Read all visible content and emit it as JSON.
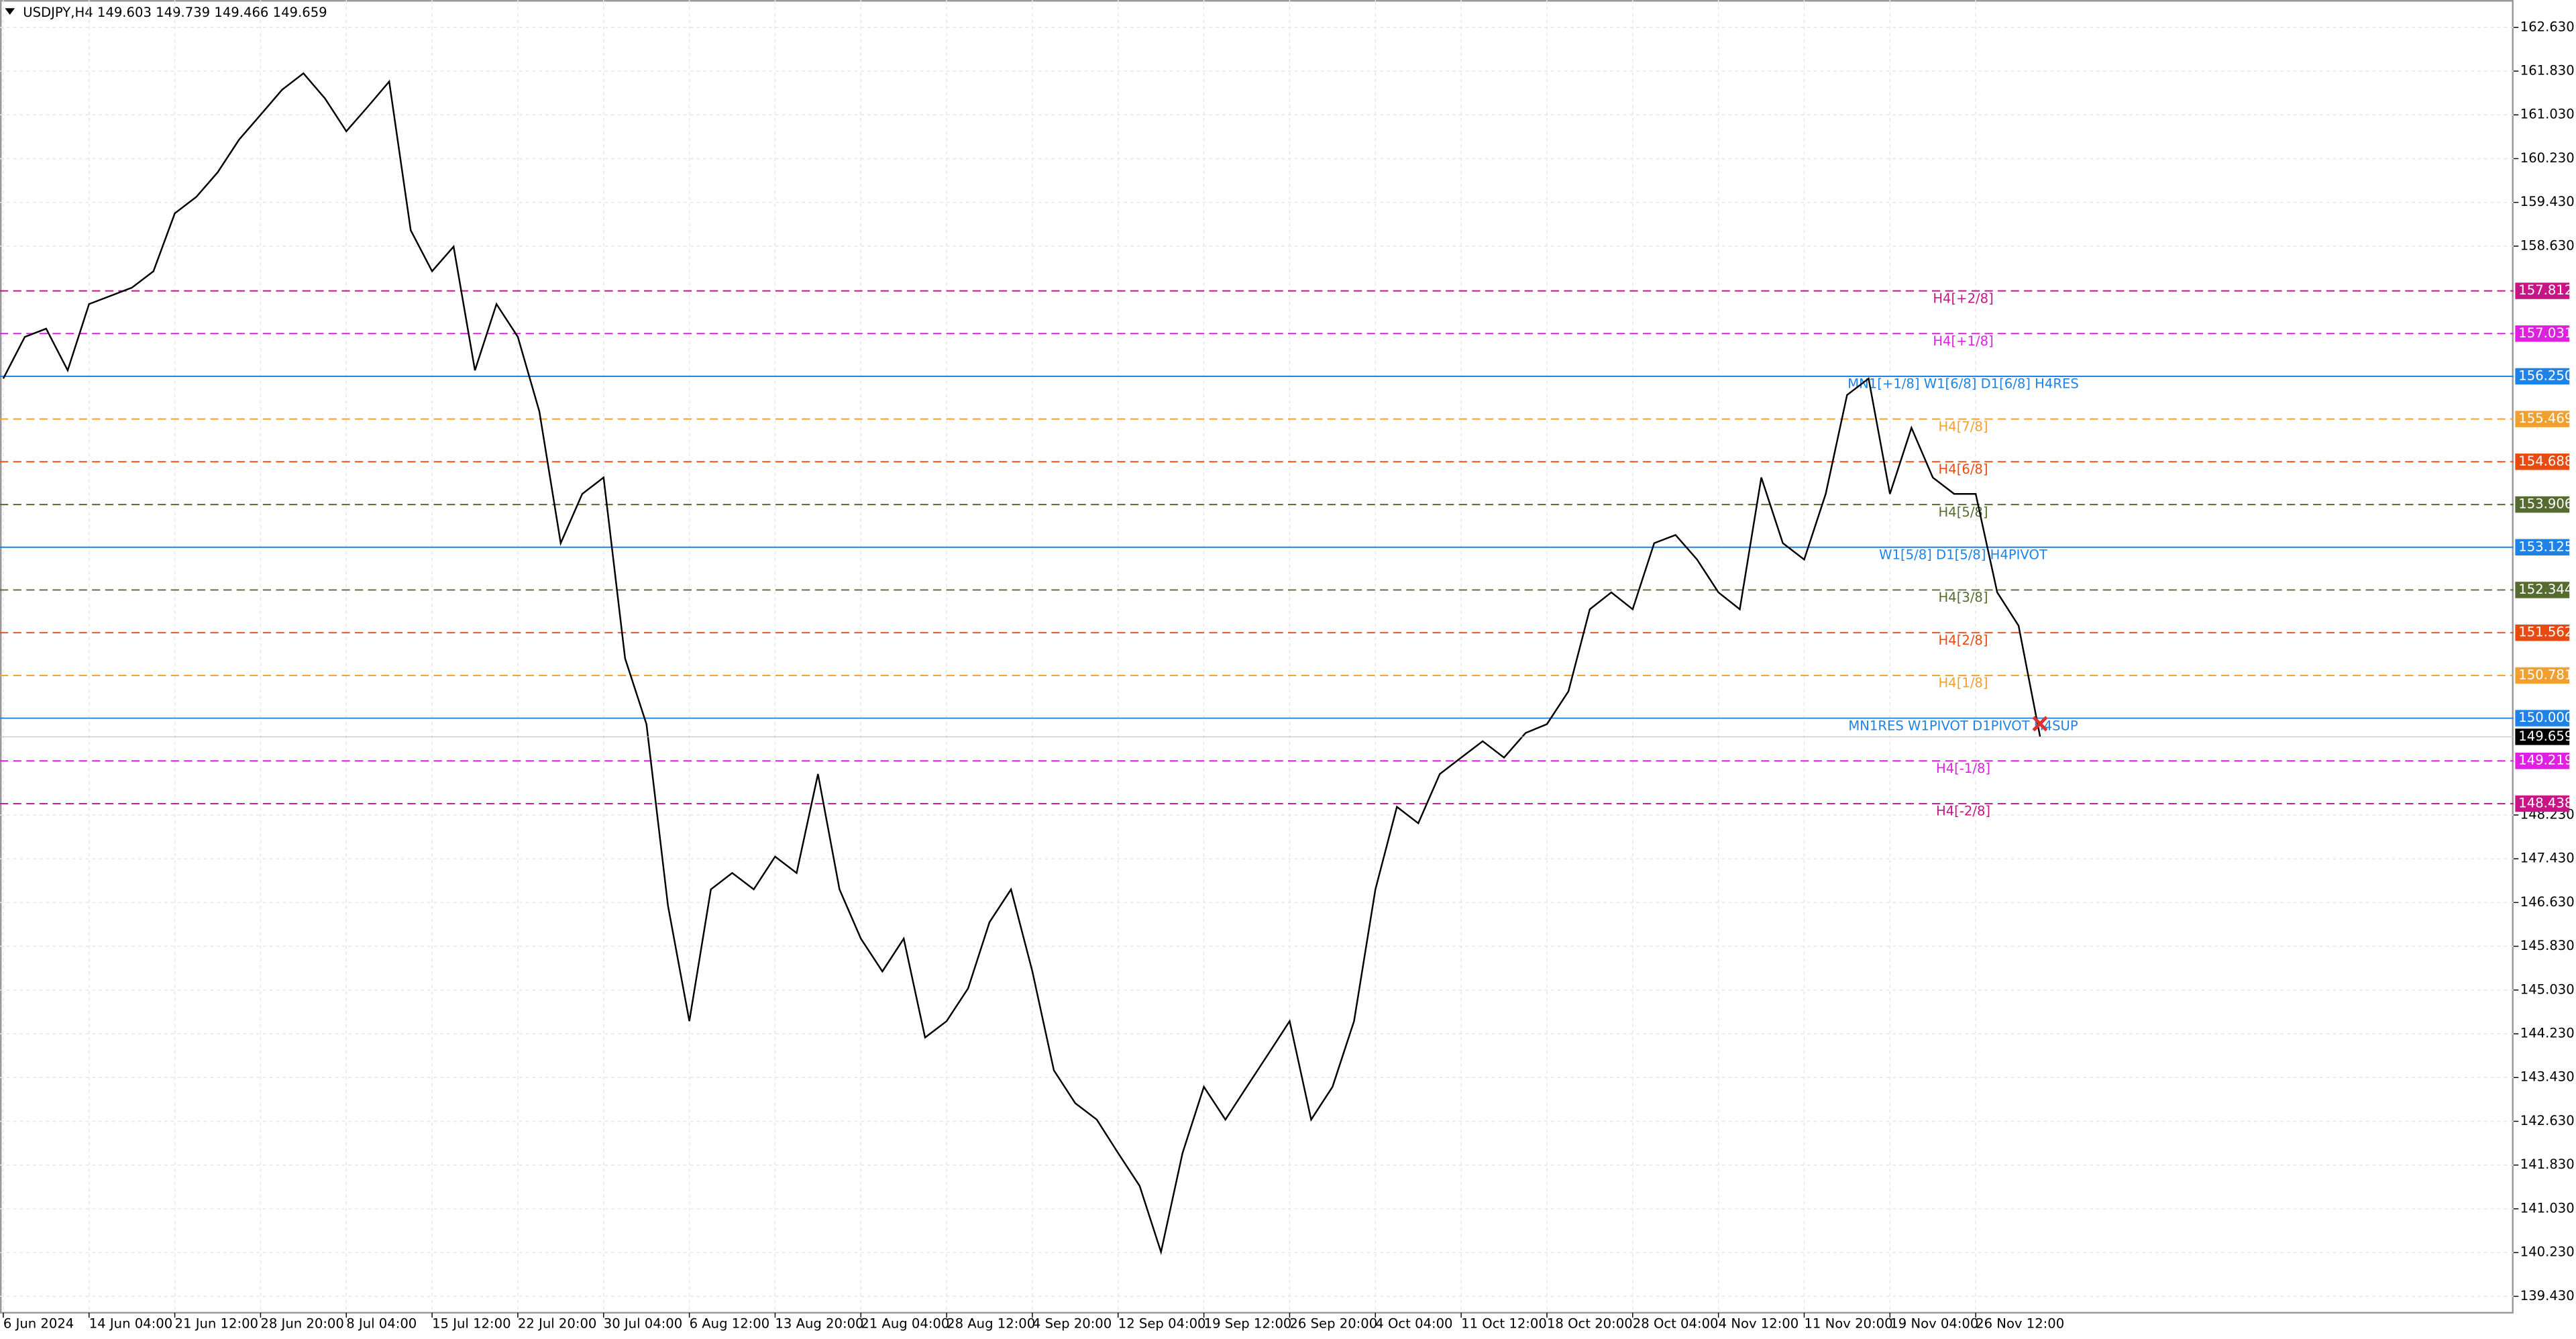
{
  "chart_data": {
    "type": "line",
    "title": "USDJPY,H4  149.603 149.739 149.466 149.659",
    "categories": [
      "6 Jun 2024",
      null,
      null,
      null,
      "14 Jun 04:00",
      null,
      null,
      null,
      "21 Jun 12:00",
      null,
      null,
      null,
      "28 Jun 20:00",
      null,
      null,
      null,
      "8 Jul 04:00",
      null,
      null,
      null,
      "15 Jul 12:00",
      null,
      null,
      null,
      "22 Jul 20:00",
      null,
      null,
      null,
      "30 Jul 04:00",
      null,
      null,
      null,
      "6 Aug 12:00",
      null,
      null,
      null,
      "13 Aug 20:00",
      null,
      null,
      null,
      "21 Aug 04:00",
      null,
      null,
      null,
      "28 Aug 12:00",
      null,
      null,
      null,
      "4 Sep 20:00",
      null,
      null,
      null,
      "12 Sep 04:00",
      null,
      null,
      null,
      "19 Sep 12:00",
      null,
      null,
      null,
      "26 Sep 20:00",
      null,
      null,
      null,
      "4 Oct 04:00",
      null,
      null,
      null,
      "11 Oct 12:00",
      null,
      null,
      null,
      "18 Oct 20:00",
      null,
      null,
      null,
      "28 Oct 04:00",
      null,
      null,
      null,
      "4 Nov 12:00",
      null,
      null,
      null,
      "11 Nov 20:00",
      null,
      null,
      null,
      "19 Nov 04:00",
      null,
      null,
      null,
      "26 Nov 12:00",
      null,
      null,
      null
    ],
    "values": [
      156.21,
      156.97,
      157.12,
      156.36,
      157.57,
      157.72,
      157.87,
      158.17,
      159.23,
      159.53,
      159.98,
      160.58,
      161.03,
      161.49,
      161.79,
      161.33,
      160.73,
      161.18,
      161.64,
      158.92,
      158.17,
      158.62,
      156.36,
      157.57,
      156.97,
      155.61,
      153.2,
      154.1,
      154.4,
      151.09,
      149.89,
      146.57,
      144.46,
      146.87,
      147.17,
      146.87,
      147.47,
      147.17,
      148.98,
      146.87,
      145.97,
      145.37,
      145.97,
      144.16,
      144.46,
      145.06,
      146.27,
      146.87,
      145.37,
      143.56,
      142.96,
      142.66,
      142.05,
      141.45,
      140.24,
      142.05,
      143.26,
      142.66,
      143.26,
      143.86,
      144.46,
      142.66,
      143.26,
      144.46,
      146.87,
      148.38,
      148.08,
      148.98,
      149.28,
      149.58,
      149.28,
      149.73,
      149.89,
      150.49,
      151.99,
      152.3,
      151.99,
      153.2,
      153.35,
      152.9,
      152.3,
      151.99,
      154.4,
      153.2,
      152.9,
      154.1,
      155.91,
      156.21,
      154.1,
      155.31,
      154.4,
      154.1,
      154.1,
      152.3,
      151.69,
      149.659
    ],
    "color": "#000000",
    "last_price": 149.659,
    "ylim": [
      139.13,
      163.13
    ],
    "yticks": [
      {
        "value": 139.43,
        "label": "139.430"
      },
      {
        "value": 140.23,
        "label": "140.230"
      },
      {
        "value": 141.03,
        "label": "141.030"
      },
      {
        "value": 141.83,
        "label": "141.830"
      },
      {
        "value": 142.63,
        "label": "142.630"
      },
      {
        "value": 143.43,
        "label": "143.430"
      },
      {
        "value": 144.23,
        "label": "144.230"
      },
      {
        "value": 145.03,
        "label": "145.030"
      },
      {
        "value": 145.83,
        "label": "145.830"
      },
      {
        "value": 146.63,
        "label": "146.630"
      },
      {
        "value": 147.43,
        "label": "147.430"
      },
      {
        "value": 148.23,
        "label": "148.230"
      },
      {
        "value": 158.63,
        "label": "158.630"
      },
      {
        "value": 159.43,
        "label": "159.430"
      },
      {
        "value": 160.23,
        "label": "160.230"
      },
      {
        "value": 161.03,
        "label": "161.030"
      },
      {
        "value": 161.83,
        "label": "161.830"
      },
      {
        "value": 162.63,
        "label": "162.630"
      }
    ],
    "grid": true,
    "levels": [
      {
        "name": "H4[+2/8]",
        "value": 157.812,
        "color": "#c71585",
        "style": "dashed"
      },
      {
        "name": "H4[+1/8]",
        "value": 157.031,
        "color": "#e020e0",
        "style": "dashed"
      },
      {
        "name": "MN1[+1/8] W1[6/8] D1[6/8] H4RES",
        "value": {
          "value": 156.25,
          "label": "156.250"
        },
        "color": "#1e82e6",
        "style": "solid"
      },
      {
        "name": "H4[7/8]",
        "value": 155.469,
        "color": "#f0a030",
        "style": "dashed"
      },
      {
        "name": "H4[6/8]",
        "value": 154.688,
        "color": "#e84a10",
        "style": "dashed"
      },
      {
        "name": "H4[5/8]",
        "value": 153.906,
        "color": "#556b2f",
        "style": "dashed"
      },
      {
        "name": "W1[5/8] D1[5/8] H4PIVOT",
        "value": 153.125,
        "color": "#1e82e6",
        "style": "solid"
      },
      {
        "name": "H4[3/8]",
        "value": 152.344,
        "color": "#556b2f",
        "style": "dashed"
      },
      {
        "name": "H4[2/8]",
        "value": 151.562,
        "color": "#e84a10",
        "style": "dashed"
      },
      {
        "name": "H4[1/8]",
        "value": 150.781,
        "color": "#f0a030",
        "style": "dashed"
      },
      {
        "name": "MN1RES W1PIVOT D1PIVOT H4SUP",
        "value": {
          "value": 150,
          "label": "150.000"
        },
        "color": "#1e82e6",
        "style": "solid"
      },
      {
        "name": "H4[-1/8]",
        "value": 149.219,
        "color": "#e020e0",
        "style": "dashed"
      },
      {
        "name": "H4[-2/8]",
        "value": 148.438,
        "color": "#c71585",
        "style": "dashed"
      }
    ]
  }
}
